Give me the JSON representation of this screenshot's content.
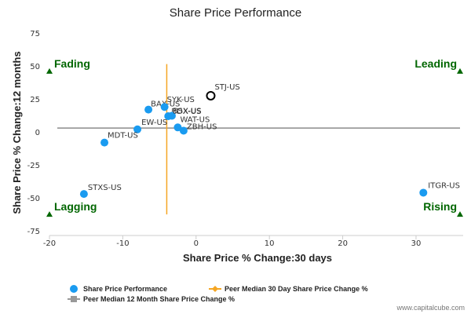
{
  "chart_data": {
    "type": "scatter",
    "title": "Share Price Performance",
    "xlabel": "Share Price % Change:30 days",
    "ylabel": "Share Price % Change:12 months",
    "xlim": [
      -20,
      36
    ],
    "ylim": [
      -75,
      75
    ],
    "xticks": [
      -20,
      -10,
      0,
      10,
      20,
      30
    ],
    "yticks": [
      75,
      50,
      25,
      0,
      -25,
      -50,
      -75
    ],
    "points": [
      {
        "label": "STJ-US",
        "x": 2.0,
        "y": 28,
        "highlight": true
      },
      {
        "label": "BAX-US",
        "x": -6.5,
        "y": 17.5,
        "highlight": false
      },
      {
        "label": "SYK-US",
        "x": -4.3,
        "y": 19.5,
        "highlight": false
      },
      {
        "label": "BDX-US",
        "x": -3.8,
        "y": 12.5,
        "highlight": false
      },
      {
        "label": "BSX-US",
        "x": -3.3,
        "y": 12.8,
        "highlight": false
      },
      {
        "label": "EW-US",
        "x": -8.0,
        "y": 2.5,
        "highlight": false
      },
      {
        "label": "WAT-US",
        "x": -2.5,
        "y": 4.0,
        "highlight": false
      },
      {
        "label": "ZBH-US",
        "x": -1.7,
        "y": 1.5,
        "highlight": false
      },
      {
        "label": "MDT-US",
        "x": -12.5,
        "y": -7.5,
        "highlight": false
      },
      {
        "label": "STXS-US",
        "x": -15.3,
        "y": -46.5,
        "highlight": false
      },
      {
        "label": "ITGR-US",
        "x": 31.0,
        "y": -45.5,
        "highlight": false
      }
    ],
    "peer_median_30d": -4.0,
    "peer_median_12m": 3.5,
    "quadrants": {
      "top_left": "Fading",
      "top_right": "Leading",
      "bottom_left": "Lagging",
      "bottom_right": "Rising"
    },
    "legend": [
      {
        "label": "Share Price Performance",
        "marker": "circle",
        "color": "#1a9bf0"
      },
      {
        "label": "Peer Median 30 Day Share Price Change %",
        "marker": "diamond-line",
        "color": "#f5a623"
      },
      {
        "label": "Peer Median 12 Month Share Price Change %",
        "marker": "square-line",
        "color": "#999999"
      }
    ],
    "grid": false,
    "legend_position": "bottom"
  },
  "colors": {
    "point": "#1a9bf0",
    "highlight_stroke": "#000000",
    "median_30d": "#f5a623",
    "median_12m": "#8c8c8c",
    "quadrant_text": "#006600",
    "quadrant_marker": "#006600"
  },
  "watermark": "www.capitalcube.com"
}
